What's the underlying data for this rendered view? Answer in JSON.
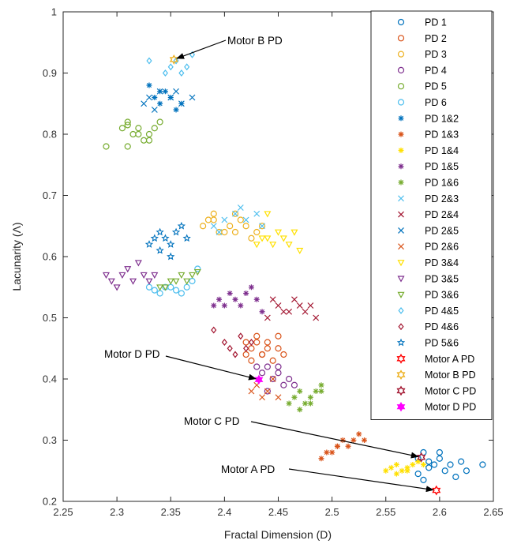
{
  "chart_data": {
    "type": "scatter",
    "xlabel": "Fractal Dimension (D)",
    "ylabel": "Lacunarity (Λ)",
    "xlim": [
      2.25,
      2.65
    ],
    "ylim": [
      0.2,
      1.0
    ],
    "xticks": [
      2.25,
      2.3,
      2.35,
      2.4,
      2.45,
      2.5,
      2.55,
      2.6,
      2.65
    ],
    "yticks": [
      0.2,
      0.3,
      0.4,
      0.5,
      0.6,
      0.7,
      0.8,
      0.9,
      1.0
    ],
    "xtick_labels": [
      "2.25",
      "2.3",
      "2.35",
      "2.4",
      "2.45",
      "2.5",
      "2.55",
      "2.6",
      "2.65"
    ],
    "ytick_labels": [
      "0.2",
      "0.3",
      "0.4",
      "0.5",
      "0.6",
      "0.7",
      "0.8",
      "0.9",
      "1"
    ],
    "grid": false,
    "legend_position": "right",
    "series": [
      {
        "name": "PD 1",
        "marker": "circle",
        "color": "#0072BD",
        "x": [
          2.58,
          2.585,
          2.59,
          2.595,
          2.6,
          2.605,
          2.61,
          2.62,
          2.64,
          2.615,
          2.6,
          2.59,
          2.58,
          2.625,
          2.585
        ],
        "y": [
          0.27,
          0.28,
          0.265,
          0.26,
          0.27,
          0.25,
          0.26,
          0.265,
          0.26,
          0.24,
          0.28,
          0.255,
          0.245,
          0.25,
          0.235
        ]
      },
      {
        "name": "PD 2",
        "marker": "circle",
        "color": "#D95319",
        "x": [
          2.42,
          2.425,
          2.43,
          2.435,
          2.44,
          2.445,
          2.45,
          2.455,
          2.42,
          2.43,
          2.44,
          2.45,
          2.425,
          2.435
        ],
        "y": [
          0.46,
          0.45,
          0.47,
          0.44,
          0.46,
          0.43,
          0.45,
          0.44,
          0.44,
          0.46,
          0.45,
          0.47,
          0.43,
          0.44
        ]
      },
      {
        "name": "PD 3",
        "marker": "circle",
        "color": "#EDB120",
        "x": [
          2.38,
          2.39,
          2.4,
          2.41,
          2.42,
          2.43,
          2.385,
          2.395,
          2.405,
          2.415,
          2.425,
          2.435,
          2.39,
          2.41
        ],
        "y": [
          0.65,
          0.66,
          0.64,
          0.67,
          0.65,
          0.64,
          0.66,
          0.64,
          0.65,
          0.66,
          0.63,
          0.65,
          0.67,
          0.64
        ]
      },
      {
        "name": "PD 4",
        "marker": "circle",
        "color": "#7E2F8E",
        "x": [
          2.43,
          2.435,
          2.44,
          2.445,
          2.45,
          2.455,
          2.46,
          2.44,
          2.45,
          2.465
        ],
        "y": [
          0.42,
          0.41,
          0.42,
          0.4,
          0.41,
          0.39,
          0.4,
          0.38,
          0.42,
          0.39
        ]
      },
      {
        "name": "PD 5",
        "marker": "circle",
        "color": "#77AC30",
        "x": [
          2.29,
          2.305,
          2.31,
          2.315,
          2.32,
          2.325,
          2.33,
          2.335,
          2.31,
          2.32,
          2.33,
          2.34,
          2.31
        ],
        "y": [
          0.78,
          0.81,
          0.82,
          0.8,
          0.81,
          0.79,
          0.8,
          0.81,
          0.78,
          0.8,
          0.79,
          0.82,
          0.815
        ]
      },
      {
        "name": "PD 6",
        "marker": "circle",
        "color": "#4DBEEE",
        "x": [
          2.33,
          2.34,
          2.35,
          2.355,
          2.36,
          2.365,
          2.37,
          2.375,
          2.345,
          2.335
        ],
        "y": [
          0.55,
          0.54,
          0.55,
          0.545,
          0.54,
          0.55,
          0.56,
          0.58,
          0.55,
          0.545
        ]
      },
      {
        "name": "PD 1&2",
        "marker": "asterisk",
        "color": "#0072BD",
        "x": [
          2.33,
          2.335,
          2.34,
          2.345,
          2.35,
          2.355,
          2.36,
          2.34
        ],
        "y": [
          0.88,
          0.86,
          0.85,
          0.87,
          0.86,
          0.84,
          0.85,
          0.87
        ]
      },
      {
        "name": "PD 1&3",
        "marker": "asterisk",
        "color": "#D95319",
        "x": [
          2.49,
          2.5,
          2.505,
          2.51,
          2.515,
          2.52,
          2.525,
          2.53,
          2.495,
          2.505
        ],
        "y": [
          0.27,
          0.28,
          0.29,
          0.3,
          0.29,
          0.3,
          0.31,
          0.3,
          0.28,
          0.29
        ]
      },
      {
        "name": "PD 1&4",
        "marker": "asterisk",
        "color": "#FFE000",
        "x": [
          2.55,
          2.555,
          2.56,
          2.565,
          2.57,
          2.575,
          2.58,
          2.585,
          2.56,
          2.57
        ],
        "y": [
          0.25,
          0.255,
          0.26,
          0.25,
          0.255,
          0.26,
          0.265,
          0.26,
          0.245,
          0.25
        ]
      },
      {
        "name": "PD 1&5",
        "marker": "asterisk",
        "color": "#7E2F8E",
        "x": [
          2.39,
          2.395,
          2.4,
          2.405,
          2.41,
          2.415,
          2.42,
          2.425,
          2.43,
          2.435
        ],
        "y": [
          0.52,
          0.53,
          0.52,
          0.54,
          0.53,
          0.52,
          0.54,
          0.55,
          0.53,
          0.51
        ]
      },
      {
        "name": "PD 1&6",
        "marker": "asterisk",
        "color": "#77AC30",
        "x": [
          2.46,
          2.465,
          2.47,
          2.475,
          2.48,
          2.485,
          2.49,
          2.47,
          2.48,
          2.49
        ],
        "y": [
          0.36,
          0.37,
          0.38,
          0.36,
          0.37,
          0.38,
          0.39,
          0.35,
          0.36,
          0.38
        ]
      },
      {
        "name": "PD 2&3",
        "marker": "x",
        "color": "#4DBEEE",
        "x": [
          2.39,
          2.4,
          2.41,
          2.42,
          2.43,
          2.435,
          2.395,
          2.415
        ],
        "y": [
          0.65,
          0.66,
          0.67,
          0.66,
          0.67,
          0.65,
          0.64,
          0.68
        ]
      },
      {
        "name": "PD 2&4",
        "marker": "x",
        "color": "#A2142F",
        "x": [
          2.44,
          2.45,
          2.46,
          2.465,
          2.47,
          2.475,
          2.48,
          2.485,
          2.445,
          2.455
        ],
        "y": [
          0.5,
          0.52,
          0.51,
          0.53,
          0.52,
          0.51,
          0.52,
          0.5,
          0.53,
          0.51
        ]
      },
      {
        "name": "PD 2&5",
        "marker": "x",
        "color": "#0072BD",
        "x": [
          2.325,
          2.33,
          2.34,
          2.35,
          2.36,
          2.37,
          2.335,
          2.355
        ],
        "y": [
          0.85,
          0.86,
          0.87,
          0.86,
          0.85,
          0.86,
          0.84,
          0.87
        ]
      },
      {
        "name": "PD 2&6",
        "marker": "x",
        "color": "#D95319",
        "x": [
          2.425,
          2.43,
          2.435,
          2.44,
          2.445,
          2.45
        ],
        "y": [
          0.38,
          0.39,
          0.37,
          0.38,
          0.4,
          0.37
        ]
      },
      {
        "name": "PD 3&4",
        "marker": "triangle-down",
        "color": "#FFE000",
        "x": [
          2.44,
          2.445,
          2.45,
          2.455,
          2.46,
          2.465,
          2.47,
          2.43,
          2.435,
          2.44
        ],
        "y": [
          0.63,
          0.62,
          0.64,
          0.63,
          0.62,
          0.64,
          0.61,
          0.62,
          0.63,
          0.67
        ]
      },
      {
        "name": "PD 3&5",
        "marker": "triangle-down",
        "color": "#7E2F8E",
        "x": [
          2.29,
          2.295,
          2.3,
          2.305,
          2.31,
          2.315,
          2.32,
          2.325,
          2.33,
          2.335
        ],
        "y": [
          0.57,
          0.56,
          0.55,
          0.57,
          0.58,
          0.56,
          0.59,
          0.57,
          0.56,
          0.57
        ]
      },
      {
        "name": "PD 3&6",
        "marker": "triangle-down",
        "color": "#77AC30",
        "x": [
          2.34,
          2.345,
          2.35,
          2.355,
          2.36,
          2.365,
          2.37,
          2.375
        ],
        "y": [
          0.55,
          0.55,
          0.56,
          0.56,
          0.57,
          0.56,
          0.57,
          0.575
        ]
      },
      {
        "name": "PD 4&5",
        "marker": "diamond",
        "color": "#4DBEEE",
        "x": [
          2.345,
          2.35,
          2.355,
          2.36,
          2.365,
          2.37,
          2.33
        ],
        "y": [
          0.9,
          0.91,
          0.92,
          0.9,
          0.91,
          0.93,
          0.92
        ]
      },
      {
        "name": "PD 4&6",
        "marker": "diamond",
        "color": "#A2142F",
        "x": [
          2.39,
          2.4,
          2.405,
          2.41,
          2.415,
          2.42,
          2.425
        ],
        "y": [
          0.48,
          0.46,
          0.45,
          0.44,
          0.47,
          0.45,
          0.46
        ]
      },
      {
        "name": "PD 5&6",
        "marker": "star",
        "color": "#0072BD",
        "x": [
          2.33,
          2.335,
          2.34,
          2.345,
          2.35,
          2.355,
          2.36,
          2.365,
          2.34,
          2.35
        ],
        "y": [
          0.62,
          0.63,
          0.64,
          0.63,
          0.62,
          0.64,
          0.65,
          0.63,
          0.61,
          0.6
        ]
      },
      {
        "name": "Motor A PD",
        "marker": "hexagram",
        "color": "#FF0000",
        "x": [
          2.597
        ],
        "y": [
          0.218
        ]
      },
      {
        "name": "Motor B PD",
        "marker": "hexagram",
        "color": "#EDB120",
        "x": [
          2.353
        ],
        "y": [
          0.922
        ]
      },
      {
        "name": "Motor C PD",
        "marker": "hexagram",
        "color": "#A2142F",
        "x": [
          2.583
        ],
        "y": [
          0.272
        ]
      },
      {
        "name": "Motor D PD",
        "marker": "hexagram-filled",
        "color": "#FF00FF",
        "x": [
          2.432
        ],
        "y": [
          0.399
        ]
      }
    ],
    "annotations": [
      {
        "text": "Motor B PD",
        "target": [
          2.353,
          0.922
        ]
      },
      {
        "text": "Motor D PD",
        "target": [
          2.432,
          0.399
        ]
      },
      {
        "text": "Motor C PD",
        "target": [
          2.583,
          0.272
        ]
      },
      {
        "text": "Motor A PD",
        "target": [
          2.597,
          0.218
        ]
      }
    ]
  }
}
